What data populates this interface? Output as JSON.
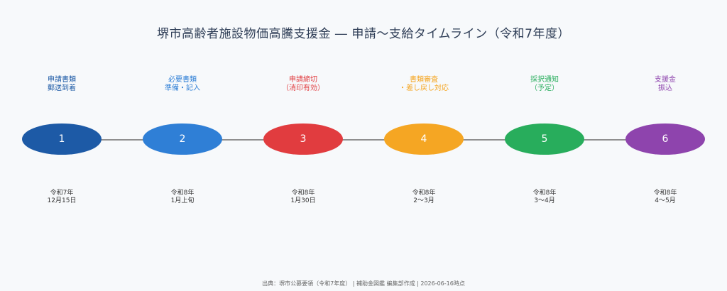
{
  "title": "堺市高齢者施設物価高騰支援金 ― 申請〜支給タイムライン（令和7年度）",
  "steps": [
    {
      "number": "1",
      "label": "申請書類\n郵送到着",
      "date": "令和7年\n12月15日",
      "color": "#1d5aa6"
    },
    {
      "number": "2",
      "label": "必要書類\n準備・記入",
      "date": "令和8年\n1月上旬",
      "color": "#2f7fd6"
    },
    {
      "number": "3",
      "label": "申請締切\n（消印有効）",
      "date": "令和8年\n1月30日",
      "color": "#e13c3f"
    },
    {
      "number": "4",
      "label": "書類審査\n・差し戻し対応",
      "date": "令和8年\n2〜3月",
      "color": "#f5a623"
    },
    {
      "number": "5",
      "label": "採択通知\n（予定）",
      "date": "令和8年\n3〜4月",
      "color": "#28ad5c"
    },
    {
      "number": "6",
      "label": "支援金\n振込",
      "date": "令和8年\n4〜5月",
      "color": "#8e44ad"
    }
  ],
  "footer": "出典：堺市公募要領（令和7年度） | 補助金図鑑 編集部作成 | 2026-06-16時点"
}
